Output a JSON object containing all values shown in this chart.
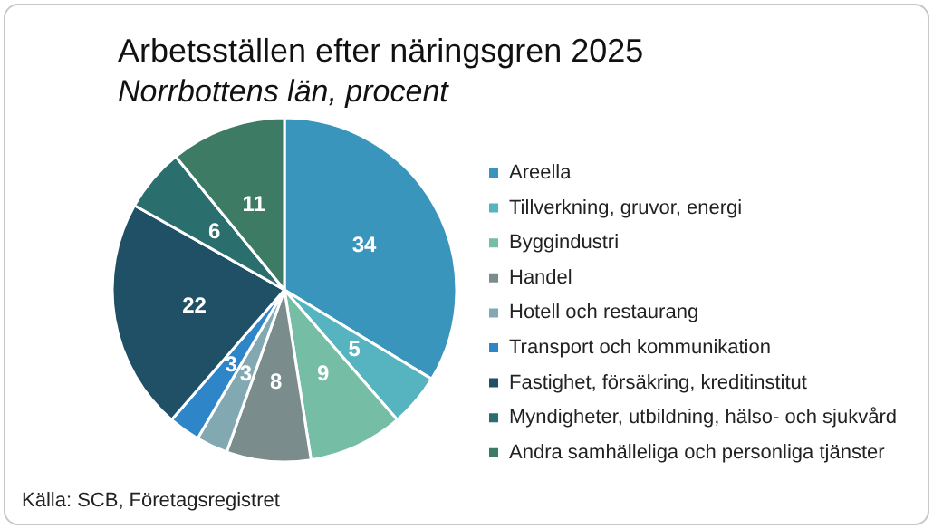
{
  "chart_data": {
    "type": "pie",
    "title": "Arbetsställen efter näringsgren 2025",
    "subtitle": "Norrbottens län, procent",
    "categories": [
      "Areella",
      "Tillverkning, gruvor, energi",
      "Byggindustri",
      "Handel",
      "Hotell och restaurang",
      "Transport och kommunikation",
      "Fastighet, försäkring, kreditinstitut",
      "Myndigheter, utbildning, hälso- och sjukvård",
      "Andra samhälleliga och personliga tjänster"
    ],
    "values": [
      34,
      5,
      9,
      8,
      3,
      3,
      22,
      6,
      11
    ],
    "colors": [
      "#3a95bd",
      "#56b4c0",
      "#76bda6",
      "#7a8c8c",
      "#82a9b1",
      "#2e86c8",
      "#1f5066",
      "#2a6e6e",
      "#3d7b65"
    ],
    "data_labels": true,
    "legend": "right",
    "annotations": [
      "Källa: SCB, Företagsregistret"
    ]
  }
}
